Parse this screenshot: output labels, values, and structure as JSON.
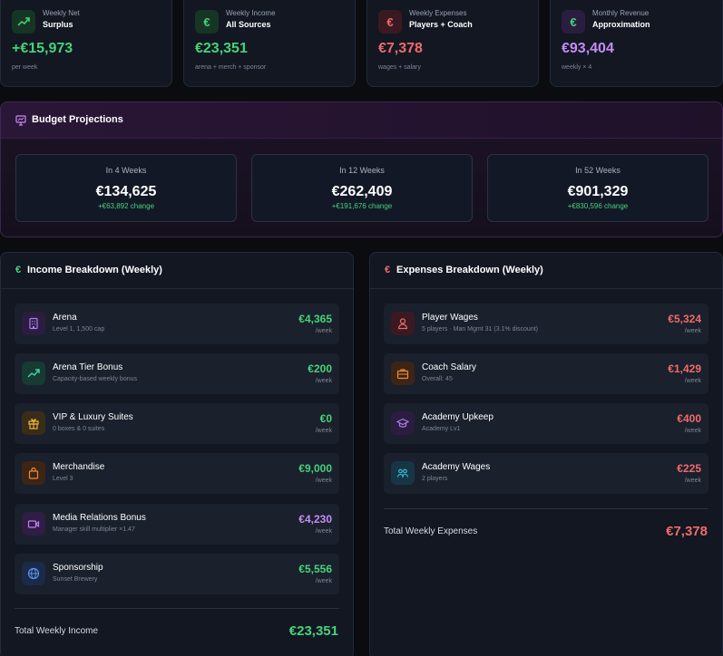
{
  "colors": {
    "green": "#46d37a",
    "red": "#f06b6b",
    "purple": "#c58cf5",
    "background": "#0b0c10"
  },
  "stats": [
    {
      "label_top": "Weekly Net",
      "label_main": "Surplus",
      "value": "+€15,973",
      "sub": "per week",
      "icon": "trending-up-icon",
      "color": "#46d37a"
    },
    {
      "label_top": "Weekly Income",
      "label_main": "All Sources",
      "value": "€23,351",
      "sub": "arena + merch + sponsor",
      "icon": "euro-icon",
      "color": "#46d37a"
    },
    {
      "label_top": "Weekly Expenses",
      "label_main": "Players + Coach",
      "value": "€7,378",
      "sub": "wages + salary",
      "icon": "euro-icon",
      "color": "#f06b6b"
    },
    {
      "label_top": "Monthly Revenue",
      "label_main": "Approximation",
      "value": "€93,404",
      "sub": "weekly × 4",
      "icon": "euro-icon",
      "color": "#c58cf5"
    }
  ],
  "budget": {
    "title": "Budget Projections",
    "icon": "presentation-chart-icon",
    "projections": [
      {
        "label": "In 4 Weeks",
        "value": "€134,625",
        "change": "+€63,892 change"
      },
      {
        "label": "In 12 Weeks",
        "value": "€262,409",
        "change": "+€191,676 change"
      },
      {
        "label": "In 52 Weeks",
        "value": "€901,329",
        "change": "+€830,596 change"
      }
    ]
  },
  "income": {
    "title": "Income Breakdown (Weekly)",
    "euro": "€",
    "items": [
      {
        "name": "Arena",
        "desc": "Level 1, 1,500 cap",
        "amount": "€4,365",
        "per": "/week",
        "icon": "building-icon"
      },
      {
        "name": "Arena Tier Bonus",
        "desc": "Capacity-based weekly bonus",
        "amount": "€200",
        "per": "/week",
        "icon": "trending-up-icon"
      },
      {
        "name": "VIP & Luxury Suites",
        "desc": "0 boxes & 0 suites",
        "amount": "€0",
        "per": "/week",
        "icon": "gift-icon"
      },
      {
        "name": "Merchandise",
        "desc": "Level 3",
        "amount": "€9,000",
        "per": "/week",
        "icon": "shopping-bag-icon"
      },
      {
        "name": "Media Relations Bonus",
        "desc": "Manager skill multiplier ×1.47",
        "amount": "€4,230",
        "per": "/week",
        "icon": "video-icon"
      },
      {
        "name": "Sponsorship",
        "desc": "Sunset Brewery",
        "amount": "€5,556",
        "per": "/week",
        "icon": "globe-icon"
      }
    ],
    "total_label": "Total Weekly Income",
    "total_value": "€23,351"
  },
  "expenses": {
    "title": "Expenses Breakdown (Weekly)",
    "euro": "€",
    "items": [
      {
        "name": "Player Wages",
        "desc": "5 players · Man Mgmt 31 (3.1% discount)",
        "amount": "€5,324",
        "per": "/week",
        "icon": "user-icon"
      },
      {
        "name": "Coach Salary",
        "desc": "Overall: 45",
        "amount": "€1,429",
        "per": "/week",
        "icon": "briefcase-icon"
      },
      {
        "name": "Academy Upkeep",
        "desc": "Academy Lv1",
        "amount": "€400",
        "per": "/week",
        "icon": "graduation-cap-icon"
      },
      {
        "name": "Academy Wages",
        "desc": "2 players",
        "amount": "€225",
        "per": "/week",
        "icon": "users-icon"
      }
    ],
    "total_label": "Total Weekly Expenses",
    "total_value": "€7,378"
  }
}
